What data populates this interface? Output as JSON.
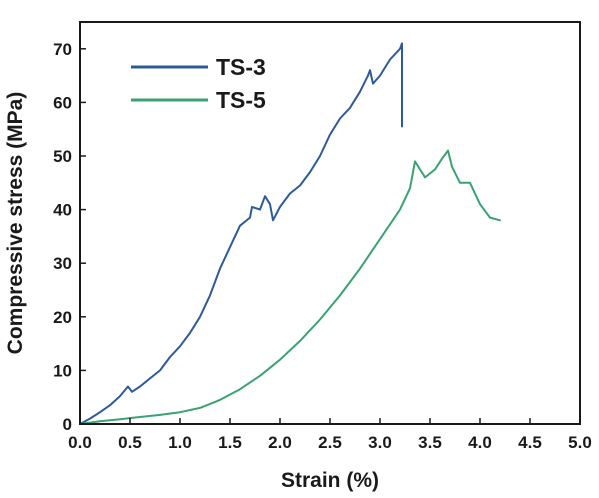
{
  "chart_data": {
    "type": "line",
    "title": "",
    "xlabel": "Strain (%)",
    "ylabel": "Compressive stress (MPa)",
    "xlim": [
      0,
      5.0
    ],
    "ylim": [
      0,
      75
    ],
    "xticks": [
      "0.0",
      "0.5",
      "1.0",
      "1.5",
      "2.0",
      "2.5",
      "3.0",
      "3.5",
      "4.0",
      "4.5",
      "5.0"
    ],
    "yticks": [
      "0",
      "10",
      "20",
      "30",
      "40",
      "50",
      "60",
      "70"
    ],
    "grid": false,
    "legend_position": "top-left",
    "series": [
      {
        "name": "TS-3",
        "color": "#2f5a9a",
        "x": [
          0.0,
          0.1,
          0.2,
          0.3,
          0.4,
          0.48,
          0.52,
          0.6,
          0.7,
          0.8,
          0.9,
          1.0,
          1.1,
          1.2,
          1.3,
          1.4,
          1.5,
          1.6,
          1.7,
          1.72,
          1.8,
          1.85,
          1.9,
          1.93,
          2.0,
          2.1,
          2.2,
          2.3,
          2.4,
          2.5,
          2.6,
          2.7,
          2.8,
          2.88,
          2.9,
          2.93,
          3.0,
          3.1,
          3.2,
          3.22,
          3.22
        ],
        "y": [
          0.0,
          1.0,
          2.2,
          3.5,
          5.2,
          7.0,
          6.0,
          7.0,
          8.5,
          10.0,
          12.5,
          14.5,
          17.0,
          20.0,
          24.0,
          29.0,
          33.0,
          37.0,
          38.5,
          40.5,
          40.0,
          42.5,
          41.0,
          38.0,
          40.5,
          43.0,
          44.5,
          47.0,
          50.0,
          54.0,
          57.0,
          59.0,
          62.0,
          65.0,
          66.0,
          63.5,
          65.0,
          68.0,
          70.0,
          71.0,
          55.5
        ]
      },
      {
        "name": "TS-5",
        "color": "#3aa272",
        "x": [
          0.0,
          0.2,
          0.4,
          0.6,
          0.8,
          1.0,
          1.2,
          1.4,
          1.6,
          1.8,
          2.0,
          2.2,
          2.4,
          2.6,
          2.8,
          3.0,
          3.2,
          3.3,
          3.35,
          3.45,
          3.55,
          3.62,
          3.68,
          3.72,
          3.8,
          3.9,
          4.0,
          4.1,
          4.2
        ],
        "y": [
          0.0,
          0.5,
          0.9,
          1.3,
          1.7,
          2.2,
          3.0,
          4.5,
          6.5,
          9.0,
          12.0,
          15.5,
          19.5,
          24.0,
          29.0,
          34.5,
          40.0,
          44.0,
          49.0,
          46.0,
          47.5,
          49.5,
          51.0,
          48.0,
          45.0,
          45.0,
          41.0,
          38.5,
          38.0
        ]
      }
    ]
  }
}
